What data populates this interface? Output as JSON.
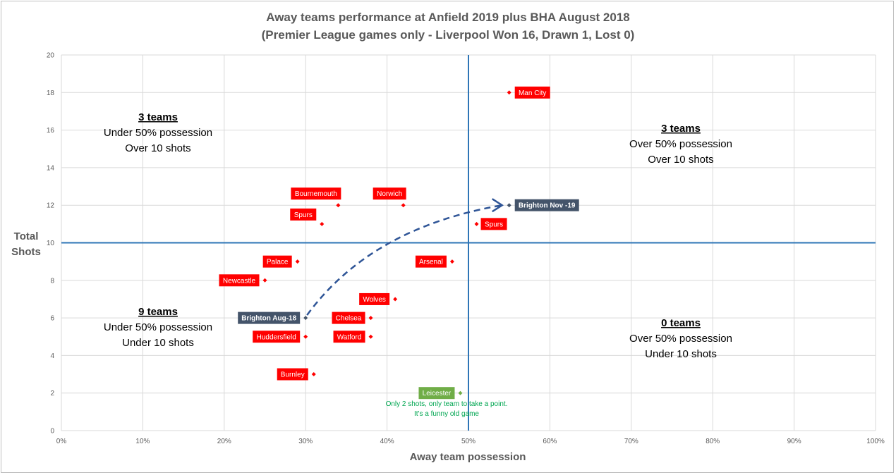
{
  "chart_data": {
    "type": "scatter",
    "title_lines": [
      "Away teams performance at Anfield 2019 plus BHA August 2018",
      "(Premier League games only - Liverpool Won 16, Drawn 1, Lost 0)"
    ],
    "xlabel": "Away team possession",
    "ylabel_lines": [
      "Total",
      "Shots"
    ],
    "xlim": [
      0,
      100
    ],
    "ylim": [
      0,
      20
    ],
    "x_ticks": [
      0,
      10,
      20,
      30,
      40,
      50,
      60,
      70,
      80,
      90,
      100
    ],
    "x_tick_labels": [
      "0%",
      "10%",
      "20%",
      "30%",
      "40%",
      "50%",
      "60%",
      "70%",
      "80%",
      "90%",
      "100%"
    ],
    "y_ticks": [
      0,
      2,
      4,
      6,
      8,
      10,
      12,
      14,
      16,
      18,
      20
    ],
    "y_tick_labels": [
      "0",
      "2",
      "4",
      "6",
      "8",
      "10",
      "12",
      "14",
      "16",
      "18",
      "20"
    ],
    "grid": true,
    "reference_lines": {
      "x": 50,
      "y": 10,
      "color": "#2e75b6"
    },
    "colors": {
      "team": "#ff0000",
      "brighton": "#44546a",
      "leicester": "#70ad47",
      "arrow": "#2f5597",
      "annotation": "#00a651"
    },
    "points": [
      {
        "label": "Man City",
        "x": 55,
        "y": 18,
        "group": "team"
      },
      {
        "label": "Bournemouth",
        "x": 34,
        "y": 12,
        "group": "team"
      },
      {
        "label": "Norwich",
        "x": 42,
        "y": 12,
        "group": "team"
      },
      {
        "label": "Spurs",
        "x": 32,
        "y": 11,
        "group": "team"
      },
      {
        "label": "Spurs",
        "x": 51,
        "y": 11,
        "group": "team"
      },
      {
        "label": "Palace",
        "x": 29,
        "y": 9,
        "group": "team"
      },
      {
        "label": "Arsenal",
        "x": 48,
        "y": 9,
        "group": "team"
      },
      {
        "label": "Newcastle",
        "x": 25,
        "y": 8,
        "group": "team"
      },
      {
        "label": "Wolves",
        "x": 41,
        "y": 7,
        "group": "team"
      },
      {
        "label": "Chelsea",
        "x": 38,
        "y": 6,
        "group": "team"
      },
      {
        "label": "Huddersfield",
        "x": 30,
        "y": 5,
        "group": "team"
      },
      {
        "label": "Watford",
        "x": 38,
        "y": 5,
        "group": "team"
      },
      {
        "label": "Burnley",
        "x": 31,
        "y": 3,
        "group": "team"
      },
      {
        "label": "Leicester",
        "x": 49,
        "y": 2,
        "group": "leicester"
      },
      {
        "label": "Brighton Aug-18",
        "x": 30,
        "y": 6,
        "group": "brighton"
      },
      {
        "label": "Brighton Nov -19",
        "x": 55,
        "y": 12,
        "group": "brighton"
      }
    ],
    "annotations": {
      "leicester_note": [
        "Only 2 shots, only team to take a point.",
        "It's a funny old game"
      ]
    },
    "quadrants": {
      "top_left": {
        "head": "3 teams",
        "lines": [
          "Under 50% possession",
          "Over 10 shots"
        ]
      },
      "top_right": {
        "head": "3 teams",
        "lines": [
          "Over 50% possession",
          "Over 10 shots"
        ]
      },
      "bottom_left": {
        "head": "9 teams",
        "lines": [
          "Under 50% possession",
          "Under 10 shots"
        ]
      },
      "bottom_right": {
        "head": "0 teams",
        "lines": [
          "Over 50% possession",
          "Under 10 shots"
        ]
      }
    }
  }
}
